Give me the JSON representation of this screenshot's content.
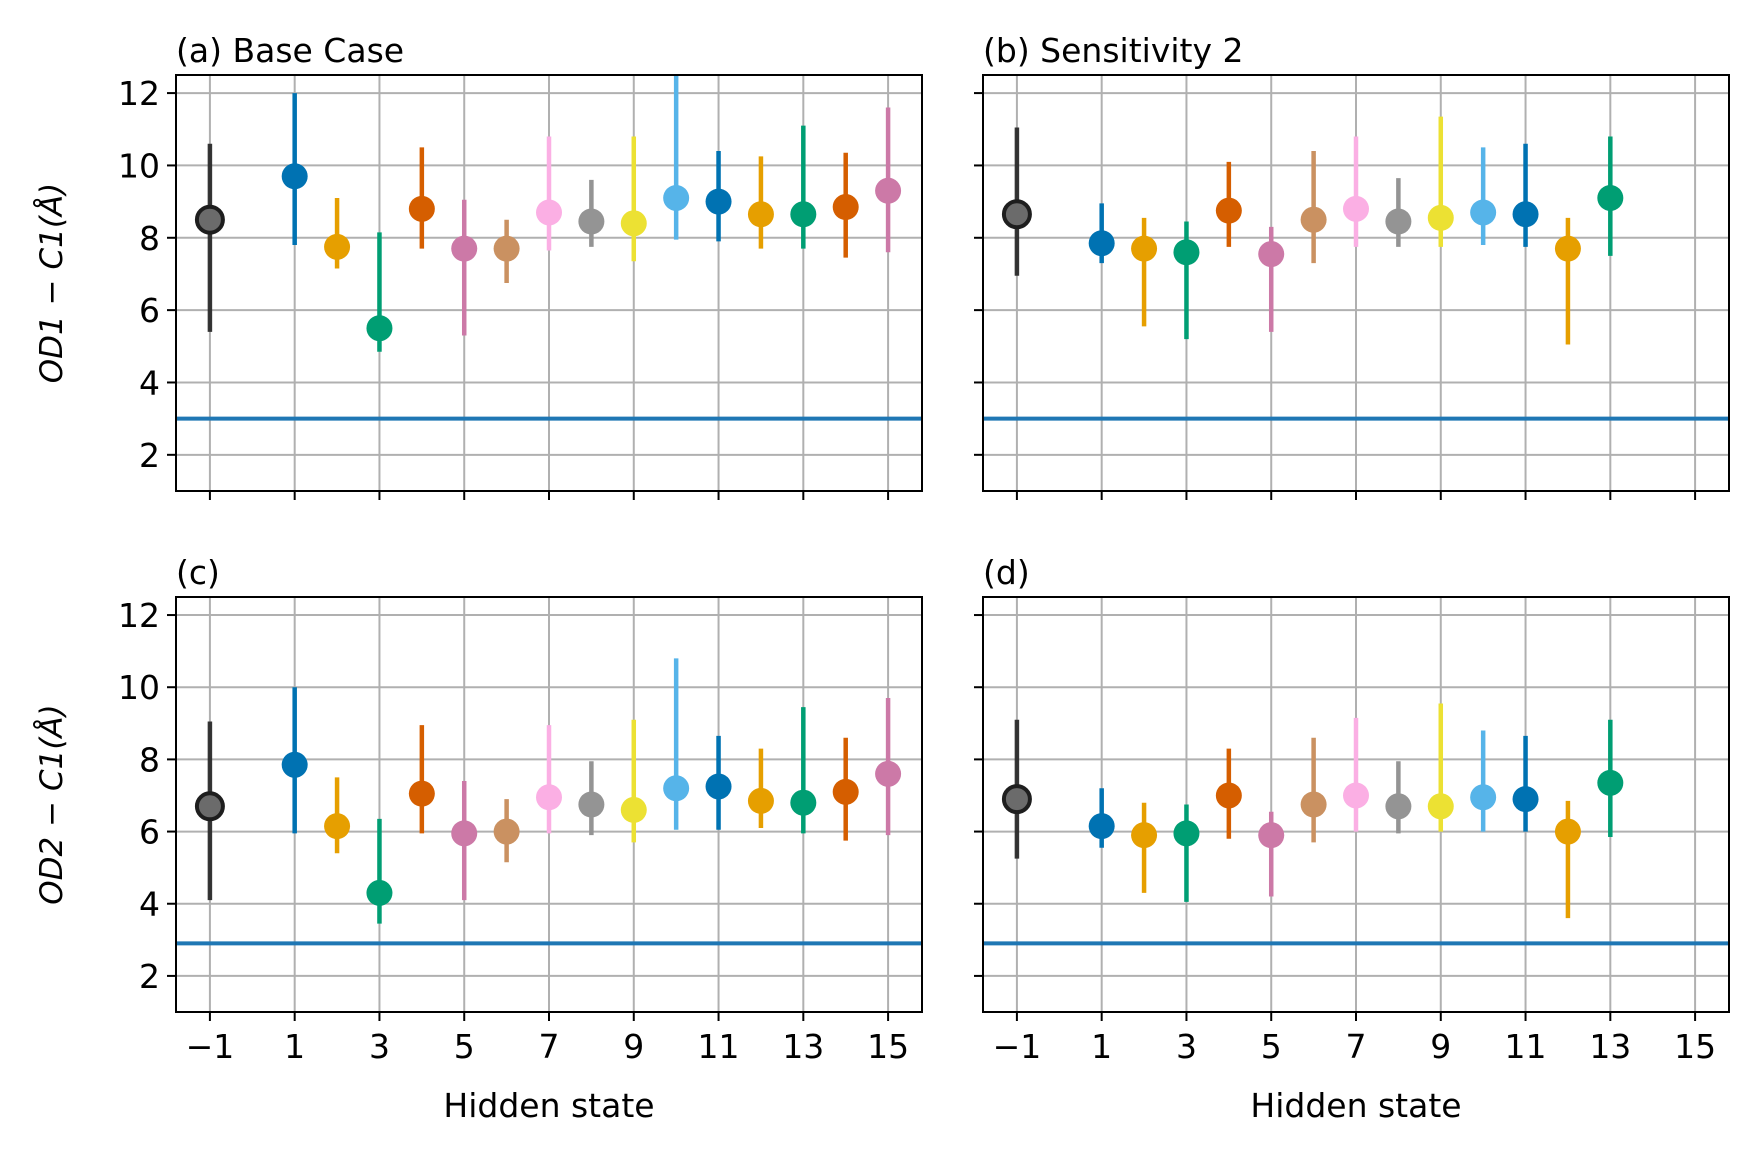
{
  "figure": {
    "xlabel": "Hidden state",
    "ylabel_top": "OD1 − C1(Å)",
    "ylabel_bottom": "OD2 − C1(Å)"
  },
  "colors": {
    "-1": "#2b2b2b",
    "1": "#0072b2",
    "2": "#e69f00",
    "3": "#009e73",
    "4": "#d55e00",
    "5": "#cc79a7",
    "6": "#ca9161",
    "7": "#fbafe4",
    "8": "#949494",
    "9": "#ece133",
    "10": "#56b4e9",
    "11": "#0072b2",
    "12": "#e69f00",
    "13": "#009e73",
    "14": "#d55e00",
    "15": "#cc79a7",
    "reference_line": "#1f77b4"
  },
  "chart_data": [
    {
      "panel": "a",
      "title": "(a) Base Case",
      "type": "scatter",
      "xlim": [
        -1.8,
        15.8
      ],
      "ylim": [
        1,
        12.5
      ],
      "xticks": [
        "−1",
        "1",
        "3",
        "5",
        "7",
        "9",
        "11",
        "13",
        "15"
      ],
      "yticks": [
        "2",
        "4",
        "6",
        "8",
        "10",
        "12"
      ],
      "reference_y": 3.0,
      "points": [
        {
          "x": -1,
          "y": 8.5,
          "lo": 5.4,
          "hi": 10.6
        },
        {
          "x": 1,
          "y": 9.7,
          "lo": 7.8,
          "hi": 12.0
        },
        {
          "x": 2,
          "y": 7.75,
          "lo": 7.15,
          "hi": 9.1
        },
        {
          "x": 3,
          "y": 5.5,
          "lo": 4.85,
          "hi": 8.15
        },
        {
          "x": 4,
          "y": 8.8,
          "lo": 7.7,
          "hi": 10.5
        },
        {
          "x": 5,
          "y": 7.7,
          "lo": 5.3,
          "hi": 9.05
        },
        {
          "x": 6,
          "y": 7.7,
          "lo": 6.75,
          "hi": 8.5
        },
        {
          "x": 7,
          "y": 8.7,
          "lo": 7.65,
          "hi": 10.8
        },
        {
          "x": 8,
          "y": 8.45,
          "lo": 7.75,
          "hi": 9.6
        },
        {
          "x": 9,
          "y": 8.4,
          "lo": 7.35,
          "hi": 10.8
        },
        {
          "x": 10,
          "y": 9.1,
          "lo": 7.95,
          "hi": 12.5
        },
        {
          "x": 11,
          "y": 9.0,
          "lo": 7.9,
          "hi": 10.4
        },
        {
          "x": 12,
          "y": 8.65,
          "lo": 7.7,
          "hi": 10.25
        },
        {
          "x": 13,
          "y": 8.65,
          "lo": 7.7,
          "hi": 11.1
        },
        {
          "x": 14,
          "y": 8.85,
          "lo": 7.45,
          "hi": 10.35
        },
        {
          "x": 15,
          "y": 9.3,
          "lo": 7.6,
          "hi": 11.6
        }
      ]
    },
    {
      "panel": "b",
      "title": "(b) Sensitivity 2",
      "type": "scatter",
      "xlim": [
        -1.8,
        15.8
      ],
      "ylim": [
        1,
        12.5
      ],
      "xticks": [
        "−1",
        "1",
        "3",
        "5",
        "7",
        "9",
        "11",
        "13",
        "15"
      ],
      "yticks": [
        "2",
        "4",
        "6",
        "8",
        "10",
        "12"
      ],
      "reference_y": 3.0,
      "points": [
        {
          "x": -1,
          "y": 8.65,
          "lo": 6.95,
          "hi": 11.05
        },
        {
          "x": 1,
          "y": 7.85,
          "lo": 7.3,
          "hi": 8.95
        },
        {
          "x": 2,
          "y": 7.7,
          "lo": 5.55,
          "hi": 8.55
        },
        {
          "x": 3,
          "y": 7.6,
          "lo": 5.2,
          "hi": 8.45
        },
        {
          "x": 4,
          "y": 8.75,
          "lo": 7.75,
          "hi": 10.1
        },
        {
          "x": 5,
          "y": 7.55,
          "lo": 5.4,
          "hi": 8.3
        },
        {
          "x": 6,
          "y": 8.5,
          "lo": 7.3,
          "hi": 10.4
        },
        {
          "x": 7,
          "y": 8.8,
          "lo": 7.75,
          "hi": 10.8
        },
        {
          "x": 8,
          "y": 8.45,
          "lo": 7.75,
          "hi": 9.65
        },
        {
          "x": 9,
          "y": 8.55,
          "lo": 7.75,
          "hi": 11.35
        },
        {
          "x": 10,
          "y": 8.7,
          "lo": 7.8,
          "hi": 10.5
        },
        {
          "x": 11,
          "y": 8.65,
          "lo": 7.75,
          "hi": 10.6
        },
        {
          "x": 12,
          "y": 7.7,
          "lo": 5.05,
          "hi": 8.55
        },
        {
          "x": 13,
          "y": 9.1,
          "lo": 7.5,
          "hi": 10.8
        }
      ]
    },
    {
      "panel": "c",
      "title": "(c)",
      "type": "scatter",
      "xlim": [
        -1.8,
        15.8
      ],
      "ylim": [
        1,
        12.5
      ],
      "xticks": [
        "−1",
        "1",
        "3",
        "5",
        "7",
        "9",
        "11",
        "13",
        "15"
      ],
      "yticks": [
        "2",
        "4",
        "6",
        "8",
        "10",
        "12"
      ],
      "reference_y": 2.9,
      "points": [
        {
          "x": -1,
          "y": 6.7,
          "lo": 4.1,
          "hi": 9.05
        },
        {
          "x": 1,
          "y": 7.85,
          "lo": 5.95,
          "hi": 10.0
        },
        {
          "x": 2,
          "y": 6.15,
          "lo": 5.4,
          "hi": 7.5
        },
        {
          "x": 3,
          "y": 4.3,
          "lo": 3.45,
          "hi": 6.35
        },
        {
          "x": 4,
          "y": 7.05,
          "lo": 5.95,
          "hi": 8.95
        },
        {
          "x": 5,
          "y": 5.95,
          "lo": 4.1,
          "hi": 7.4
        },
        {
          "x": 6,
          "y": 6.0,
          "lo": 5.15,
          "hi": 6.9
        },
        {
          "x": 7,
          "y": 6.95,
          "lo": 5.95,
          "hi": 8.95
        },
        {
          "x": 8,
          "y": 6.75,
          "lo": 5.9,
          "hi": 7.95
        },
        {
          "x": 9,
          "y": 6.6,
          "lo": 5.7,
          "hi": 9.1
        },
        {
          "x": 10,
          "y": 7.2,
          "lo": 6.05,
          "hi": 10.8
        },
        {
          "x": 11,
          "y": 7.25,
          "lo": 6.05,
          "hi": 8.65
        },
        {
          "x": 12,
          "y": 6.85,
          "lo": 6.1,
          "hi": 8.3
        },
        {
          "x": 13,
          "y": 6.8,
          "lo": 5.95,
          "hi": 9.45
        },
        {
          "x": 14,
          "y": 7.1,
          "lo": 5.75,
          "hi": 8.6
        },
        {
          "x": 15,
          "y": 7.6,
          "lo": 5.9,
          "hi": 9.7
        }
      ]
    },
    {
      "panel": "d",
      "title": "(d)",
      "type": "scatter",
      "xlim": [
        -1.8,
        15.8
      ],
      "ylim": [
        1,
        12.5
      ],
      "xticks": [
        "−1",
        "1",
        "3",
        "5",
        "7",
        "9",
        "11",
        "13",
        "15"
      ],
      "yticks": [
        "2",
        "4",
        "6",
        "8",
        "10",
        "12"
      ],
      "reference_y": 2.9,
      "points": [
        {
          "x": -1,
          "y": 6.9,
          "lo": 5.25,
          "hi": 9.1
        },
        {
          "x": 1,
          "y": 6.15,
          "lo": 5.55,
          "hi": 7.2
        },
        {
          "x": 2,
          "y": 5.9,
          "lo": 4.3,
          "hi": 6.8
        },
        {
          "x": 3,
          "y": 5.95,
          "lo": 4.05,
          "hi": 6.75
        },
        {
          "x": 4,
          "y": 7.0,
          "lo": 5.8,
          "hi": 8.3
        },
        {
          "x": 5,
          "y": 5.9,
          "lo": 4.2,
          "hi": 6.55
        },
        {
          "x": 6,
          "y": 6.75,
          "lo": 5.7,
          "hi": 8.6
        },
        {
          "x": 7,
          "y": 7.0,
          "lo": 6.0,
          "hi": 9.15
        },
        {
          "x": 8,
          "y": 6.7,
          "lo": 5.95,
          "hi": 7.95
        },
        {
          "x": 9,
          "y": 6.7,
          "lo": 6.0,
          "hi": 9.55
        },
        {
          "x": 10,
          "y": 6.95,
          "lo": 6.0,
          "hi": 8.8
        },
        {
          "x": 11,
          "y": 6.9,
          "lo": 6.0,
          "hi": 8.65
        },
        {
          "x": 12,
          "y": 6.0,
          "lo": 3.6,
          "hi": 6.85
        },
        {
          "x": 13,
          "y": 7.35,
          "lo": 5.85,
          "hi": 9.1
        }
      ]
    }
  ]
}
